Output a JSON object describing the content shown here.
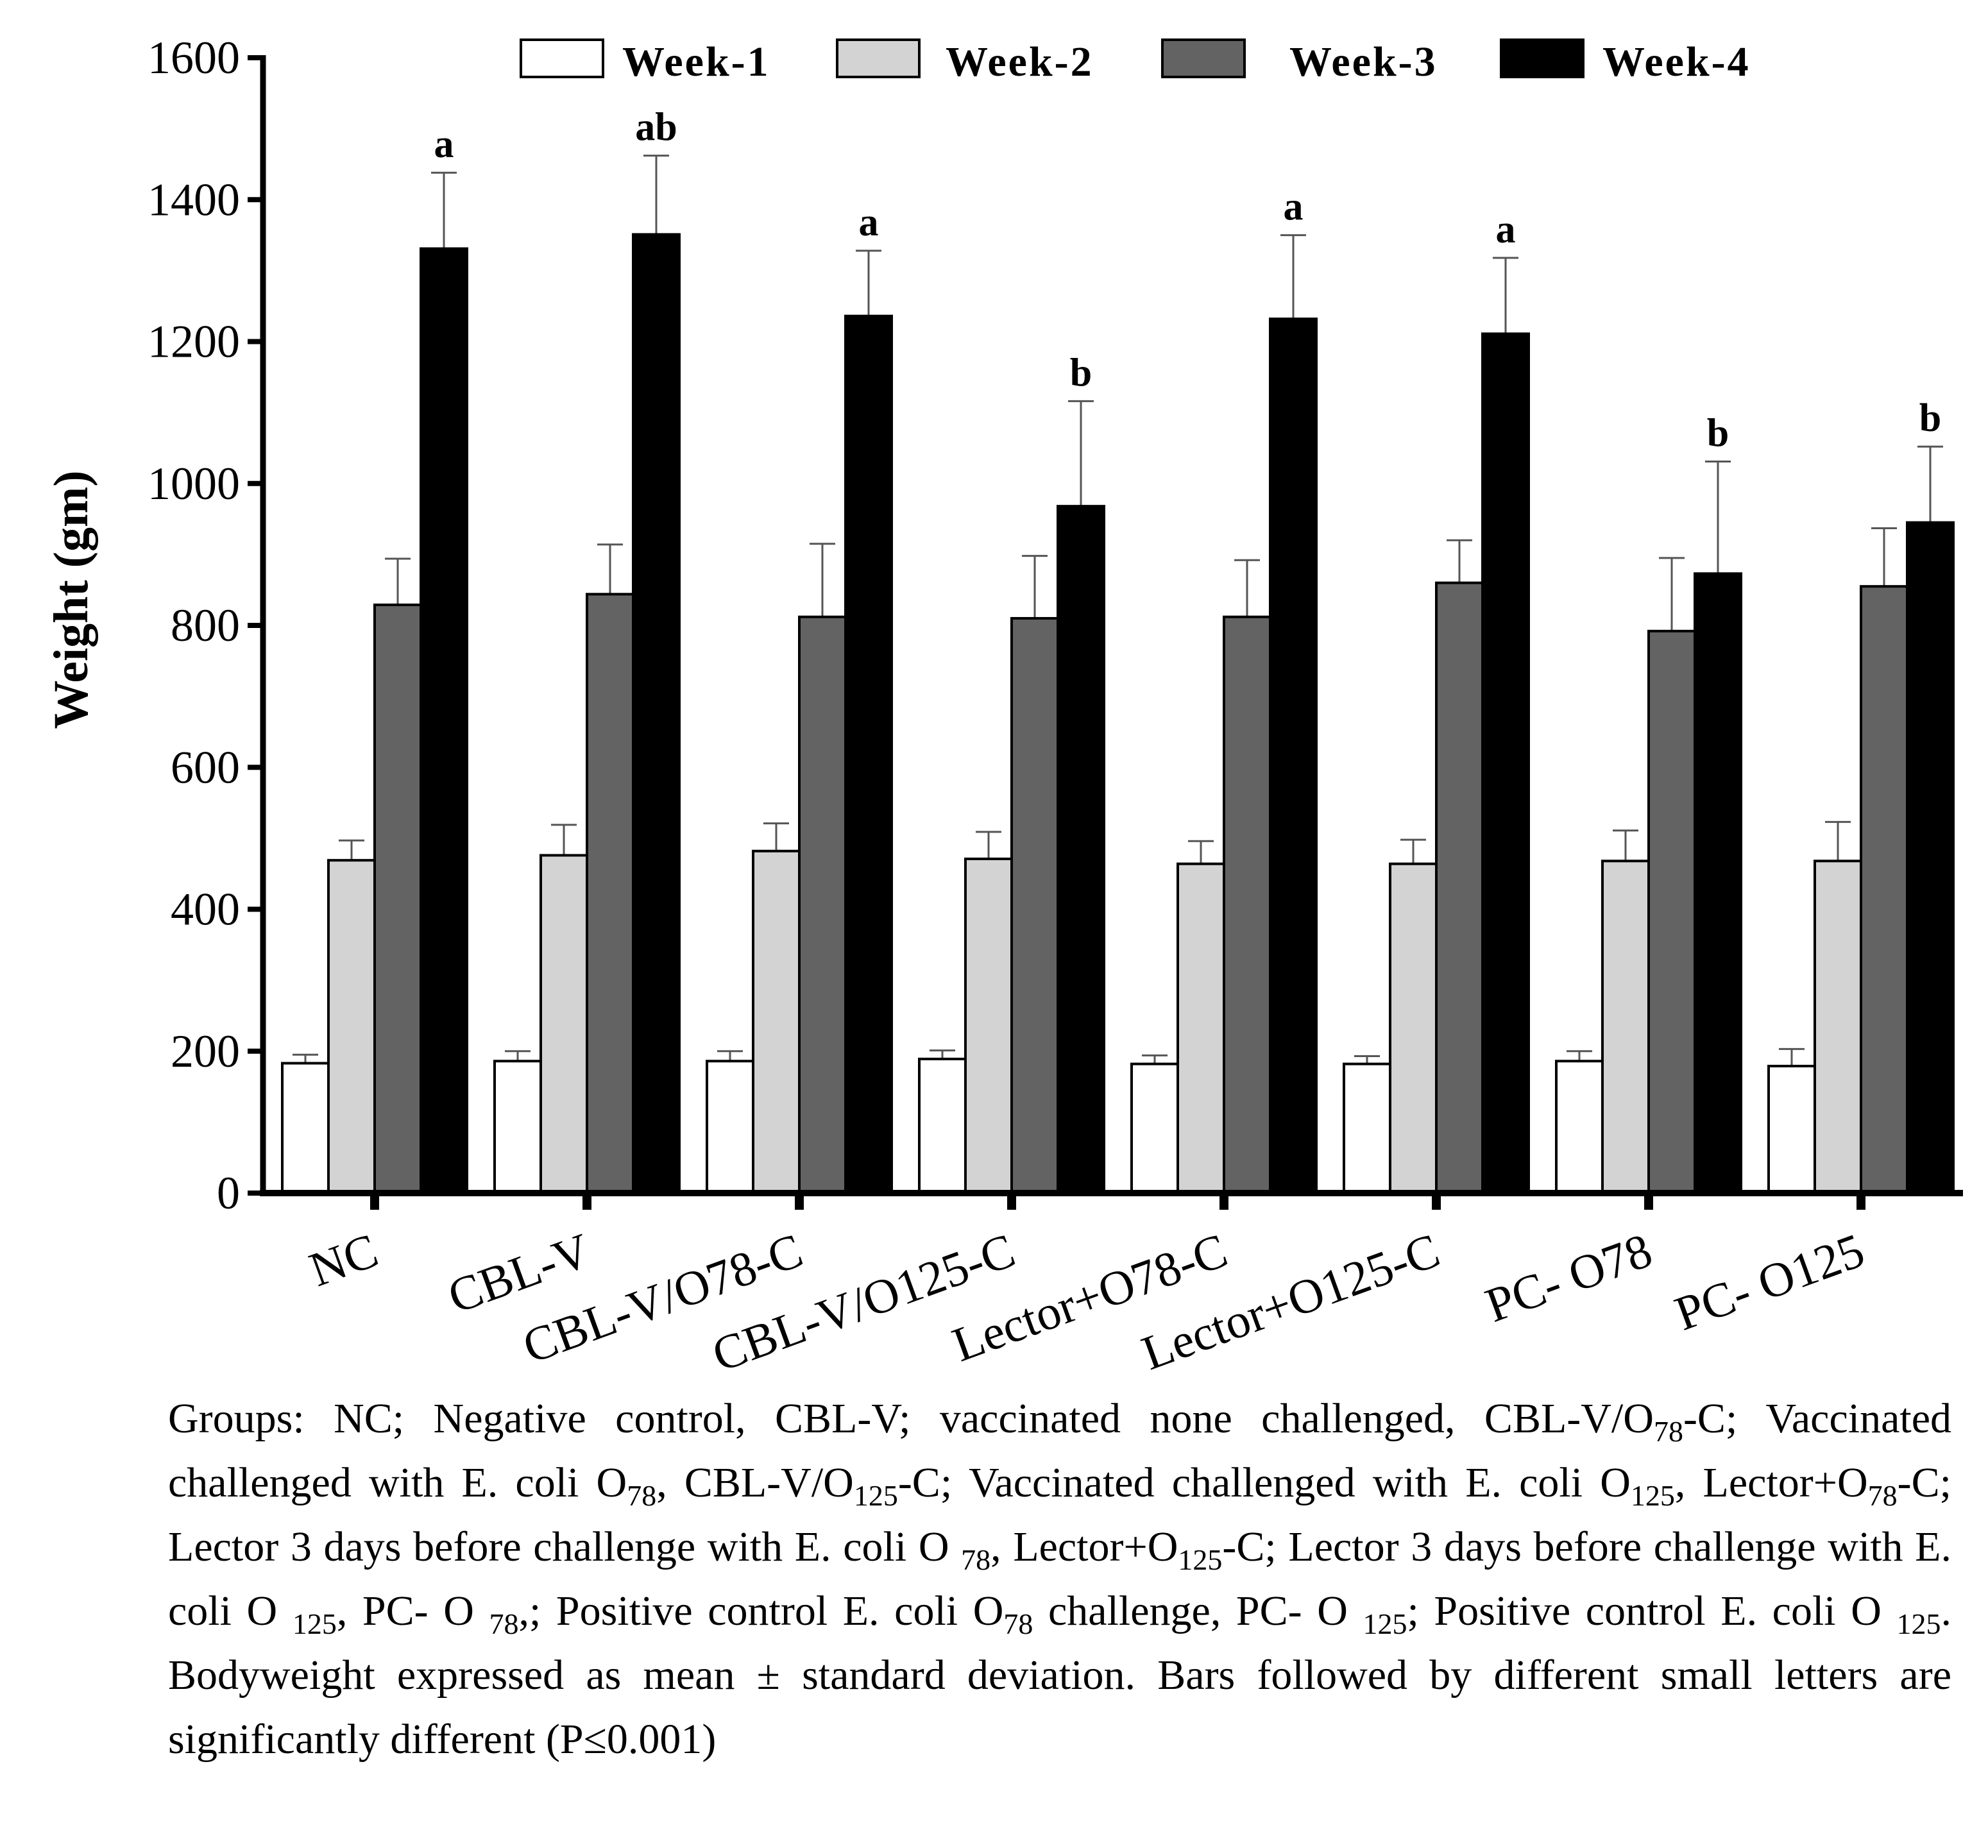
{
  "chart_data": {
    "type": "bar",
    "title": "",
    "xlabel": "",
    "ylabel": "Weight (gm)",
    "ylim": [
      0,
      1600
    ],
    "yticks": [
      0,
      200,
      400,
      600,
      800,
      1000,
      1200,
      1400,
      1600
    ],
    "grid": false,
    "legend_position": "top",
    "categories": [
      "NC",
      "CBL-V",
      "CBL-V/O78-C",
      "CBL-V/O125-C",
      "Lector+O78-C",
      "Lector+O125-C",
      "PC- O78",
      "PC- O125"
    ],
    "series": [
      {
        "name": "Week-1",
        "color": "#ffffff",
        "values": [
          183,
          186,
          186,
          189,
          182,
          182,
          186,
          179
        ],
        "errors": [
          12,
          14,
          14,
          12,
          12,
          11,
          14,
          24
        ]
      },
      {
        "name": "Week-2",
        "color": "#d3d3d3",
        "values": [
          469,
          476,
          482,
          471,
          464,
          464,
          468,
          468
        ],
        "errors": [
          28,
          43,
          39,
          38,
          32,
          34,
          43,
          55
        ]
      },
      {
        "name": "Week-3",
        "color": "#636363",
        "values": [
          829,
          844,
          812,
          810,
          812,
          860,
          792,
          855
        ],
        "errors": [
          65,
          70,
          103,
          88,
          80,
          60,
          103,
          82
        ]
      },
      {
        "name": "Week-4",
        "color": "#000000",
        "values": [
          1331,
          1351,
          1236,
          968,
          1232,
          1211,
          873,
          945
        ],
        "errors": [
          107,
          111,
          92,
          148,
          118,
          107,
          158,
          107
        ]
      }
    ],
    "annotations": [
      "a",
      "ab",
      "a",
      "b",
      "a",
      "a",
      "b",
      "b"
    ]
  },
  "caption": [
    {
      "t": "Groups: NC; Negative control, CBL-V; vaccinated none challenged, CBL-V/O"
    },
    {
      "t": "78",
      "sub": true
    },
    {
      "t": "-C; Vaccinated challenged with E. coli O"
    },
    {
      "t": "78",
      "sub": true
    },
    {
      "t": ", CBL-V/O"
    },
    {
      "t": "125",
      "sub": true
    },
    {
      "t": "-C; Vaccinated challenged with E. coli O"
    },
    {
      "t": "125",
      "sub": true
    },
    {
      "t": ", Lector+O"
    },
    {
      "t": "78",
      "sub": true
    },
    {
      "t": "-C; Lector 3 days before challenge with E. coli O "
    },
    {
      "t": "78",
      "sub": true
    },
    {
      "t": ", Lector+O"
    },
    {
      "t": "125",
      "sub": true
    },
    {
      "t": "-C; Lector 3 days before challenge with E. coli O "
    },
    {
      "t": "125",
      "sub": true
    },
    {
      "t": ", PC- O "
    },
    {
      "t": "78",
      "sub": true
    },
    {
      "t": ",; Positive control E. coli O"
    },
    {
      "t": "78",
      "sub": true
    },
    {
      "t": " challenge, PC- O "
    },
    {
      "t": "125",
      "sub": true
    },
    {
      "t": "; Positive control E. coli O "
    },
    {
      "t": "125",
      "sub": true
    },
    {
      "t": ". Bodyweight expressed as mean ± standard deviation. Bars followed by different small letters are significantly different (P≤0.001)"
    }
  ]
}
